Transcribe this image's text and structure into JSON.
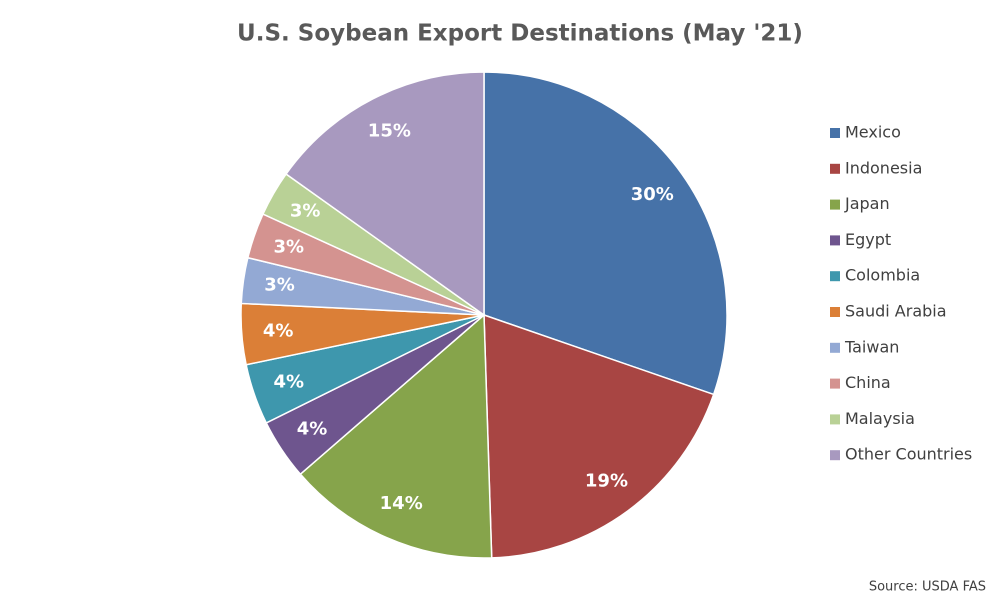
{
  "chart_data": {
    "type": "pie",
    "title": "U.S. Soybean Export Destinations (May '21)",
    "categories": [
      "Mexico",
      "Indonesia",
      "Japan",
      "Egypt",
      "Colombia",
      "Saudi Arabia",
      "Taiwan",
      "China",
      "Malaysia",
      "Other Countries"
    ],
    "values": [
      30,
      19,
      14,
      4,
      4,
      4,
      3,
      3,
      3,
      15
    ],
    "value_labels": [
      "30%",
      "19%",
      "14%",
      "4%",
      "4%",
      "4%",
      "3%",
      "3%",
      "3%",
      "15%"
    ],
    "colors": [
      "#4672a8",
      "#a84543",
      "#86a44b",
      "#6e558e",
      "#3e97ad",
      "#db7f37",
      "#93a9d4",
      "#d49390",
      "#b9d196",
      "#a899bf"
    ],
    "legend": "right",
    "source": "Source: USDA FAS"
  }
}
